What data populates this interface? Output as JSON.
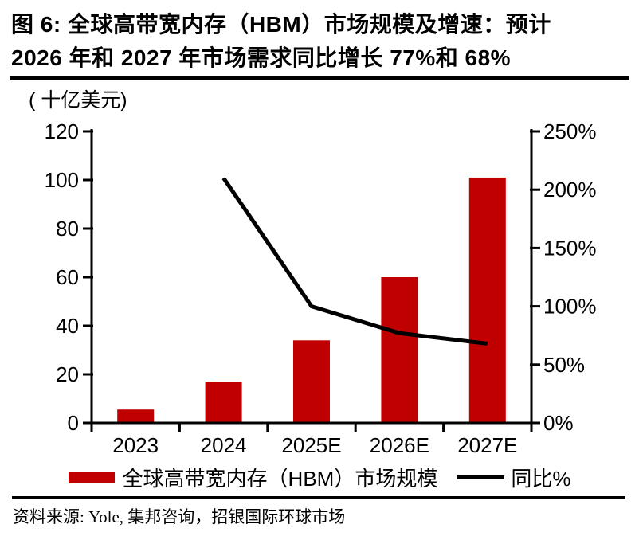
{
  "header": {
    "title_line1": "图 6: 全球高带宽内存（HBM）市场规模及增速：预计",
    "title_line2": "2026 年和 2027 年市场需求同比增长 77%和 68%"
  },
  "chart_data": {
    "type": "bar",
    "title": "图 6: 全球高带宽内存（HBM）市场规模及增速：预计 2026 年和 2027 年市场需求同比增长 77%和 68%",
    "categories": [
      "2023",
      "2024",
      "2025E",
      "2026E",
      "2027E"
    ],
    "series": [
      {
        "name": "全球高带宽内存（HBM）市场规模",
        "chart": "bar",
        "axis": "left",
        "unit": "十亿美元",
        "color": "#c00000",
        "values": [
          5.5,
          17,
          34,
          60,
          101
        ]
      },
      {
        "name": "同比%",
        "chart": "line",
        "axis": "right",
        "unit": "%",
        "color": "#000000",
        "values": [
          null,
          210,
          100,
          77,
          68
        ]
      }
    ],
    "left_axis": {
      "label": "( 十亿美元)",
      "min": 0,
      "max": 120,
      "step": 20,
      "tick_labels": [
        "0",
        "20",
        "40",
        "60",
        "80",
        "100",
        "120"
      ]
    },
    "right_axis": {
      "min": 0,
      "max": 250,
      "step": 50,
      "tick_labels": [
        "0%",
        "50%",
        "100%",
        "150%",
        "200%",
        "250%"
      ]
    },
    "grid": false,
    "legend_position": "bottom"
  },
  "source": {
    "text": "资料来源: Yole, 集邦咨询，招银国际环球市场"
  }
}
